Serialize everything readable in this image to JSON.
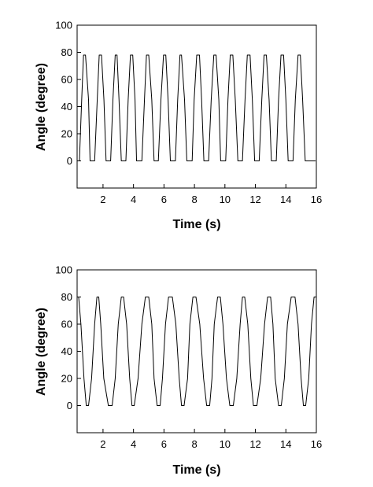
{
  "chart_data": [
    {
      "type": "line",
      "xlabel": "Time (s)",
      "ylabel": "Angle (degree)",
      "xlim": [
        0.3,
        16
      ],
      "ylim": [
        -20,
        100
      ],
      "x_ticks": [
        2,
        4,
        6,
        8,
        10,
        12,
        14,
        16
      ],
      "y_ticks": [
        0,
        20,
        40,
        60,
        80,
        100
      ],
      "grid": false,
      "series": [
        {
          "line_color": "#000000",
          "x": [
            0.3,
            0.45,
            0.6,
            0.72,
            0.85,
            1.05,
            1.15,
            1.3,
            1.45,
            1.62,
            1.75,
            1.9,
            2.06,
            2.2,
            2.35,
            2.5,
            2.65,
            2.8,
            2.92,
            3.05,
            3.2,
            3.32,
            3.5,
            3.65,
            3.8,
            3.95,
            4.1,
            4.2,
            4.37,
            4.55,
            4.72,
            4.85,
            5.0,
            5.2,
            5.35,
            5.5,
            5.63,
            5.8,
            5.97,
            6.12,
            6.27,
            6.42,
            6.58,
            6.75,
            6.9,
            7.05,
            7.15,
            7.35,
            7.5,
            7.67,
            7.85,
            7.98,
            8.15,
            8.33,
            8.47,
            8.62,
            8.77,
            8.93,
            9.1,
            9.27,
            9.42,
            9.6,
            9.72,
            9.88,
            10.05,
            10.2,
            10.35,
            10.52,
            10.68,
            10.85,
            11.0,
            11.15,
            11.32,
            11.47,
            11.65,
            11.8,
            11.95,
            12.1,
            12.25,
            12.42,
            12.57,
            12.72,
            12.9,
            13.05,
            13.2,
            13.37,
            13.52,
            13.68,
            13.85,
            14.0,
            14.15,
            14.32,
            14.47,
            14.62,
            14.8,
            14.95,
            15.1,
            15.27,
            15.42,
            15.6,
            15.77,
            15.95
          ],
          "y": [
            0,
            0,
            45,
            78,
            78,
            45,
            0,
            0,
            0,
            45,
            78,
            78,
            45,
            0,
            0,
            0,
            45,
            78,
            78,
            45,
            0,
            0,
            0,
            45,
            78,
            78,
            45,
            0,
            0,
            0,
            45,
            78,
            78,
            45,
            0,
            0,
            0,
            45,
            78,
            78,
            45,
            0,
            0,
            0,
            45,
            78,
            78,
            45,
            0,
            0,
            0,
            45,
            78,
            78,
            45,
            0,
            0,
            0,
            45,
            78,
            78,
            45,
            0,
            0,
            0,
            45,
            78,
            78,
            45,
            0,
            0,
            0,
            45,
            78,
            78,
            45,
            0,
            0,
            0,
            45,
            78,
            78,
            45,
            0,
            0,
            0,
            45,
            78,
            78,
            45,
            0,
            0,
            0,
            45,
            78,
            78,
            45,
            0,
            0,
            0,
            0,
            0
          ]
        }
      ]
    },
    {
      "type": "line",
      "xlabel": "Time (s)",
      "ylabel": "Angle (degree)",
      "xlim": [
        0.3,
        16
      ],
      "ylim": [
        -20,
        100
      ],
      "x_ticks": [
        2,
        4,
        6,
        8,
        10,
        12,
        14,
        16
      ],
      "y_ticks": [
        0,
        20,
        40,
        60,
        80,
        100
      ],
      "grid": false,
      "series": [
        {
          "line_color": "#000000",
          "x": [
            0.3,
            0.4,
            0.55,
            0.75,
            0.9,
            1.05,
            1.25,
            1.45,
            1.6,
            1.72,
            1.85,
            2.05,
            2.35,
            2.6,
            2.8,
            3.0,
            3.2,
            3.35,
            3.55,
            3.75,
            3.9,
            4.05,
            4.3,
            4.55,
            4.78,
            5.0,
            5.2,
            5.35,
            5.55,
            5.75,
            5.9,
            6.1,
            6.3,
            6.55,
            6.78,
            7.0,
            7.15,
            7.32,
            7.55,
            7.7,
            7.9,
            8.1,
            8.35,
            8.6,
            8.8,
            9.0,
            9.15,
            9.3,
            9.52,
            9.7,
            9.87,
            10.1,
            10.32,
            10.55,
            10.78,
            11.0,
            11.15,
            11.3,
            11.5,
            11.7,
            11.87,
            12.1,
            12.35,
            12.6,
            12.8,
            13.0,
            13.15,
            13.3,
            13.52,
            13.7,
            13.9,
            14.1,
            14.35,
            14.6,
            14.8,
            15.0,
            15.15,
            15.3,
            15.5,
            15.68,
            15.85,
            16.0
          ],
          "y": [
            80,
            80,
            60,
            20,
            0,
            0,
            20,
            60,
            80,
            80,
            60,
            20,
            0,
            0,
            20,
            60,
            80,
            80,
            60,
            20,
            0,
            0,
            20,
            60,
            80,
            80,
            60,
            20,
            0,
            0,
            20,
            60,
            80,
            80,
            60,
            20,
            0,
            0,
            20,
            60,
            80,
            80,
            60,
            20,
            0,
            0,
            20,
            60,
            80,
            80,
            60,
            20,
            0,
            0,
            20,
            60,
            80,
            80,
            60,
            20,
            0,
            0,
            20,
            60,
            80,
            80,
            60,
            20,
            0,
            0,
            20,
            60,
            80,
            80,
            60,
            20,
            0,
            0,
            20,
            60,
            80,
            80
          ]
        }
      ]
    }
  ]
}
